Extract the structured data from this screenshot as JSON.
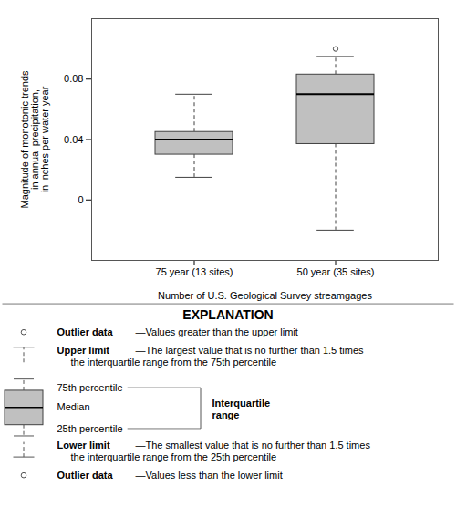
{
  "chart_data": {
    "type": "box",
    "xlabel": "Number of U.S. Geological Survey streamgages",
    "ylabel": "Magnitude of monotonic trends\nin annual precipitation,\nin inches per water year",
    "categories": [
      "75 year (13 sites)",
      "50 year (35 sites)"
    ],
    "boxes": [
      {
        "whisker_low": 0.015,
        "q1": 0.03,
        "median": 0.04,
        "q3": 0.045,
        "whisker_high": 0.07,
        "outliers": []
      },
      {
        "whisker_low": -0.02,
        "q1": 0.037,
        "median": 0.07,
        "q3": 0.083,
        "whisker_high": 0.095,
        "outliers": [
          0.1
        ]
      }
    ],
    "ylim": [
      -0.04,
      0.12
    ],
    "yticks": [
      0,
      0.04,
      0.08
    ],
    "color": "#c0c0c0",
    "edge_color": "#404040",
    "whisker_color": "#404040",
    "median_color": "#000000",
    "explanation": {
      "title": "EXPLANATION",
      "outlier_high": {
        "label": "Outlier data",
        "text": [
          "—Values greater than the upper limit"
        ]
      },
      "upper_limit": {
        "label": "Upper limit",
        "text": [
          "—The largest value that is no further than 1.5 times",
          "the interquartile range from the 75th percentile"
        ]
      },
      "percentile_75": "75th percentile",
      "median": "Median",
      "percentile_25": "25th percentile",
      "interquartile_range": "Interquartile\nrange",
      "lower_limit": {
        "label": "Lower limit",
        "text": [
          "—The smallest value that is no further than 1.5 times",
          "the interquartile range from the 25th percentile"
        ]
      },
      "outlier_low": {
        "label": "Outlier data",
        "text": [
          "—Values less than the lower limit"
        ]
      }
    }
  }
}
